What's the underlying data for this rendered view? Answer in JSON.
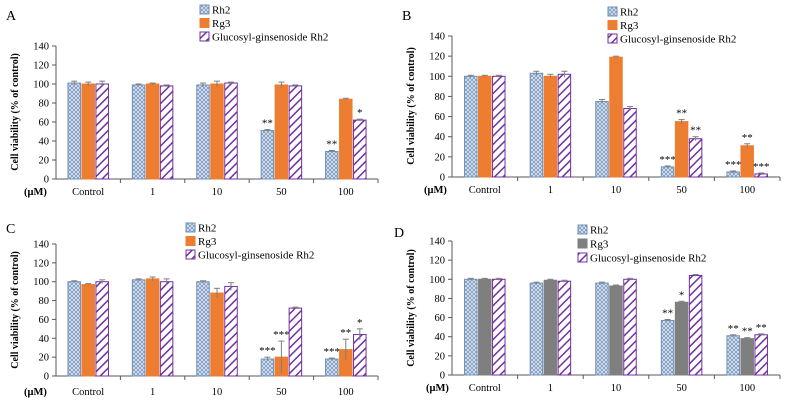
{
  "colors": {
    "rh2_fill": "#dbe5f1",
    "rh2_stroke": "#6f8fb8",
    "rg3_fill": "#ed7d31",
    "glucosyl_stroke": "#7030a0",
    "axis": "#595959",
    "error": "#7f7f7f",
    "grid_line": "#d9d9d9",
    "panel_d_rg3_fill": "#7f7f7f"
  },
  "chart_data": [
    {
      "type": "bar",
      "panel": "A",
      "categories": [
        "Control",
        "1",
        "10",
        "50",
        "100"
      ],
      "xunit": "(μM)",
      "ylabel": "Cell viability (% of control)",
      "ylim": [
        0,
        140
      ],
      "yticks": [
        0,
        20,
        40,
        60,
        80,
        100,
        120,
        140
      ],
      "legend": [
        "Rh2",
        "Rg3",
        "Glucosyl-ginsenoside Rh2"
      ],
      "series": [
        {
          "name": "Rh2",
          "values": [
            101,
            99,
            99,
            51,
            29
          ],
          "errors": [
            2,
            1,
            2,
            1,
            1
          ],
          "annotations": [
            "",
            "",
            "",
            "**",
            "**"
          ]
        },
        {
          "name": "Rg3",
          "values": [
            100,
            100,
            100,
            99,
            84
          ],
          "errors": [
            2,
            1,
            3,
            3,
            1
          ],
          "annotations": [
            "",
            "",
            "",
            "",
            ""
          ]
        },
        {
          "name": "Glucosyl-ginsenoside Rh2",
          "values": [
            100,
            98,
            101,
            98,
            62
          ],
          "errors": [
            3,
            1,
            1,
            1,
            1
          ],
          "annotations": [
            "",
            "",
            "",
            "",
            "*"
          ]
        }
      ]
    },
    {
      "type": "bar",
      "panel": "B",
      "categories": [
        "Control",
        "1",
        "10",
        "50",
        "100"
      ],
      "xunit": "(μM)",
      "ylabel": "Cell viability (% of control)",
      "ylim": [
        0,
        140
      ],
      "yticks": [
        0,
        20,
        40,
        60,
        80,
        100,
        120,
        140
      ],
      "legend": [
        "Rh2",
        "Rg3",
        "Glucosyl-ginsenoside Rh2"
      ],
      "series": [
        {
          "name": "Rh2",
          "values": [
            100,
            103,
            75,
            10,
            5
          ],
          "errors": [
            1,
            2,
            2,
            1,
            1
          ],
          "annotations": [
            "",
            "",
            "",
            "***",
            "***"
          ]
        },
        {
          "name": "Rg3",
          "values": [
            100,
            100,
            119,
            55,
            31
          ],
          "errors": [
            1,
            2,
            1,
            2,
            2
          ],
          "annotations": [
            "",
            "",
            "",
            "**",
            "**"
          ]
        },
        {
          "name": "Glucosyl-ginsenoside Rh2",
          "values": [
            100,
            102,
            68,
            38,
            3
          ],
          "errors": [
            1,
            3,
            2,
            2,
            1
          ],
          "annotations": [
            "",
            "",
            "",
            "**",
            "***"
          ]
        }
      ]
    },
    {
      "type": "bar",
      "panel": "C",
      "categories": [
        "Control",
        "1",
        "10",
        "50",
        "100"
      ],
      "xunit": "(μM)",
      "ylabel": "Cell viability (% of control)",
      "ylim": [
        0,
        140
      ],
      "yticks": [
        0,
        20,
        40,
        60,
        80,
        100,
        120,
        140
      ],
      "legend": [
        "Rh2",
        "Rg3",
        "Glucosyl-ginsenoside Rh2"
      ],
      "series": [
        {
          "name": "Rh2",
          "values": [
            100,
            102,
            100,
            18,
            18
          ],
          "errors": [
            1,
            1,
            1,
            2,
            1
          ],
          "annotations": [
            "",
            "",
            "",
            "***",
            "***"
          ]
        },
        {
          "name": "Rg3",
          "values": [
            97,
            103,
            88,
            20,
            28
          ],
          "errors": [
            1,
            2,
            5,
            17,
            11
          ],
          "annotations": [
            "",
            "",
            "",
            "***",
            "**"
          ]
        },
        {
          "name": "Glucosyl-ginsenoside Rh2",
          "values": [
            100,
            100,
            95,
            72,
            44
          ],
          "errors": [
            2,
            3,
            4,
            1,
            6
          ],
          "annotations": [
            "",
            "",
            "",
            "",
            "*"
          ]
        }
      ]
    },
    {
      "type": "bar",
      "panel": "D",
      "categories": [
        "Control",
        "1",
        "10",
        "50",
        "100"
      ],
      "xunit": "(μM)",
      "ylabel": "Cell viability (% of control)",
      "ylim": [
        0,
        140
      ],
      "yticks": [
        0,
        20,
        40,
        60,
        80,
        100,
        120,
        140
      ],
      "legend": [
        "Rh2",
        "Rg3",
        "Glucosyl-ginsenoside Rh2"
      ],
      "series": [
        {
          "name": "Rh2",
          "values": [
            100,
            96,
            96,
            57,
            41
          ],
          "errors": [
            1,
            1,
            1,
            1,
            1
          ],
          "annotations": [
            "",
            "",
            "",
            "**",
            "**"
          ]
        },
        {
          "name": "Rg3",
          "values": [
            100,
            99,
            93,
            76,
            38
          ],
          "errors": [
            1,
            1,
            1,
            1,
            1
          ],
          "annotations": [
            "",
            "",
            "",
            "*",
            "**"
          ]
        },
        {
          "name": "Glucosyl-ginsenoside Rh2",
          "values": [
            100,
            98,
            100,
            104,
            42
          ],
          "errors": [
            1,
            1,
            1,
            1,
            1
          ],
          "annotations": [
            "",
            "",
            "",
            "",
            "**"
          ]
        }
      ]
    }
  ]
}
